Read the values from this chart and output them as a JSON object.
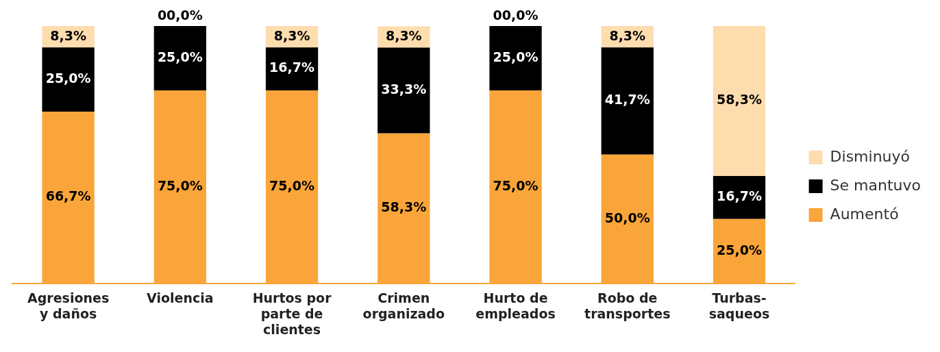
{
  "chart_data": {
    "type": "bar",
    "stacked": true,
    "legend": "right",
    "grid": false,
    "categories": [
      "Agresiones y daños",
      "Violencia",
      "Hurtos por parte de clientes",
      "Crimen organizado",
      "Hurto de empleados",
      "Robo de transportes",
      "Turbas-saqueos"
    ],
    "series": [
      {
        "name": "Aumentó",
        "color": "#f9a53a",
        "values": [
          66.7,
          75.0,
          75.0,
          58.3,
          75.0,
          50.0,
          25.0
        ],
        "value_labels": [
          "66,7%",
          "75,0%",
          "75,0%",
          "58,3%",
          "75,0%",
          "50,0%",
          "25,0%"
        ]
      },
      {
        "name": "Se mantuvo",
        "color": "#000000",
        "values": [
          25.0,
          25.0,
          16.7,
          33.3,
          25.0,
          41.7,
          16.7
        ],
        "value_labels": [
          "25,0%",
          "25,0%",
          "16,7%",
          "33,3%",
          "25,0%",
          "41,7%",
          "16,7%"
        ]
      },
      {
        "name": "Disminuyó",
        "color": "#fddcae",
        "values": [
          8.3,
          0,
          8.3,
          8.3,
          0,
          8.3,
          58.3
        ],
        "value_labels": [
          "8,3%",
          "00,0%",
          "8,3%",
          "8,3%",
          "00,0%",
          "8,3%",
          "58,3%"
        ]
      }
    ]
  }
}
